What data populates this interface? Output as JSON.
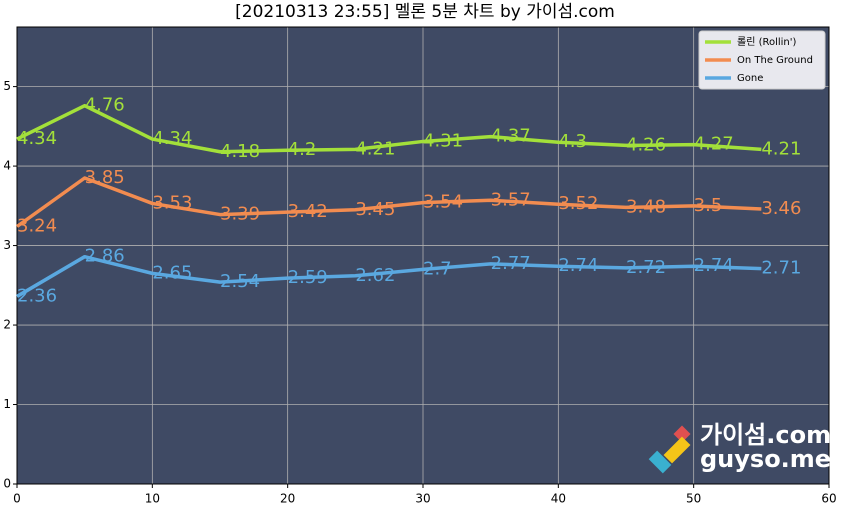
{
  "chart_data": {
    "type": "line",
    "title": "[20210313 23:55] 멜론 5분 차트 by 가이섬.com",
    "x": [
      0,
      5,
      10,
      15,
      20,
      25,
      30,
      35,
      40,
      45,
      50,
      55
    ],
    "series": [
      {
        "name": "롤린 (Rollin')",
        "color": "#a3e03a",
        "values": [
          4.34,
          4.76,
          4.34,
          4.18,
          4.2,
          4.21,
          4.31,
          4.37,
          4.3,
          4.26,
          4.27,
          4.21
        ]
      },
      {
        "name": "On The Ground",
        "color": "#f28c50",
        "values": [
          3.24,
          3.85,
          3.53,
          3.39,
          3.42,
          3.45,
          3.54,
          3.57,
          3.52,
          3.48,
          3.5,
          3.46
        ]
      },
      {
        "name": "Gone",
        "color": "#5aa8e0",
        "values": [
          2.36,
          2.86,
          2.65,
          2.54,
          2.59,
          2.62,
          2.7,
          2.77,
          2.74,
          2.72,
          2.74,
          2.71
        ]
      }
    ],
    "xlim": [
      0,
      60
    ],
    "xticks": [
      0,
      10,
      20,
      30,
      40,
      50,
      60
    ],
    "ylim": [
      0,
      5.75
    ],
    "yticks": [
      0,
      1,
      2,
      3,
      4,
      5
    ],
    "grid": true,
    "legend": "upper right",
    "background": "#3f4a64",
    "watermark": [
      "가이섬.com",
      "guyso.me"
    ]
  }
}
